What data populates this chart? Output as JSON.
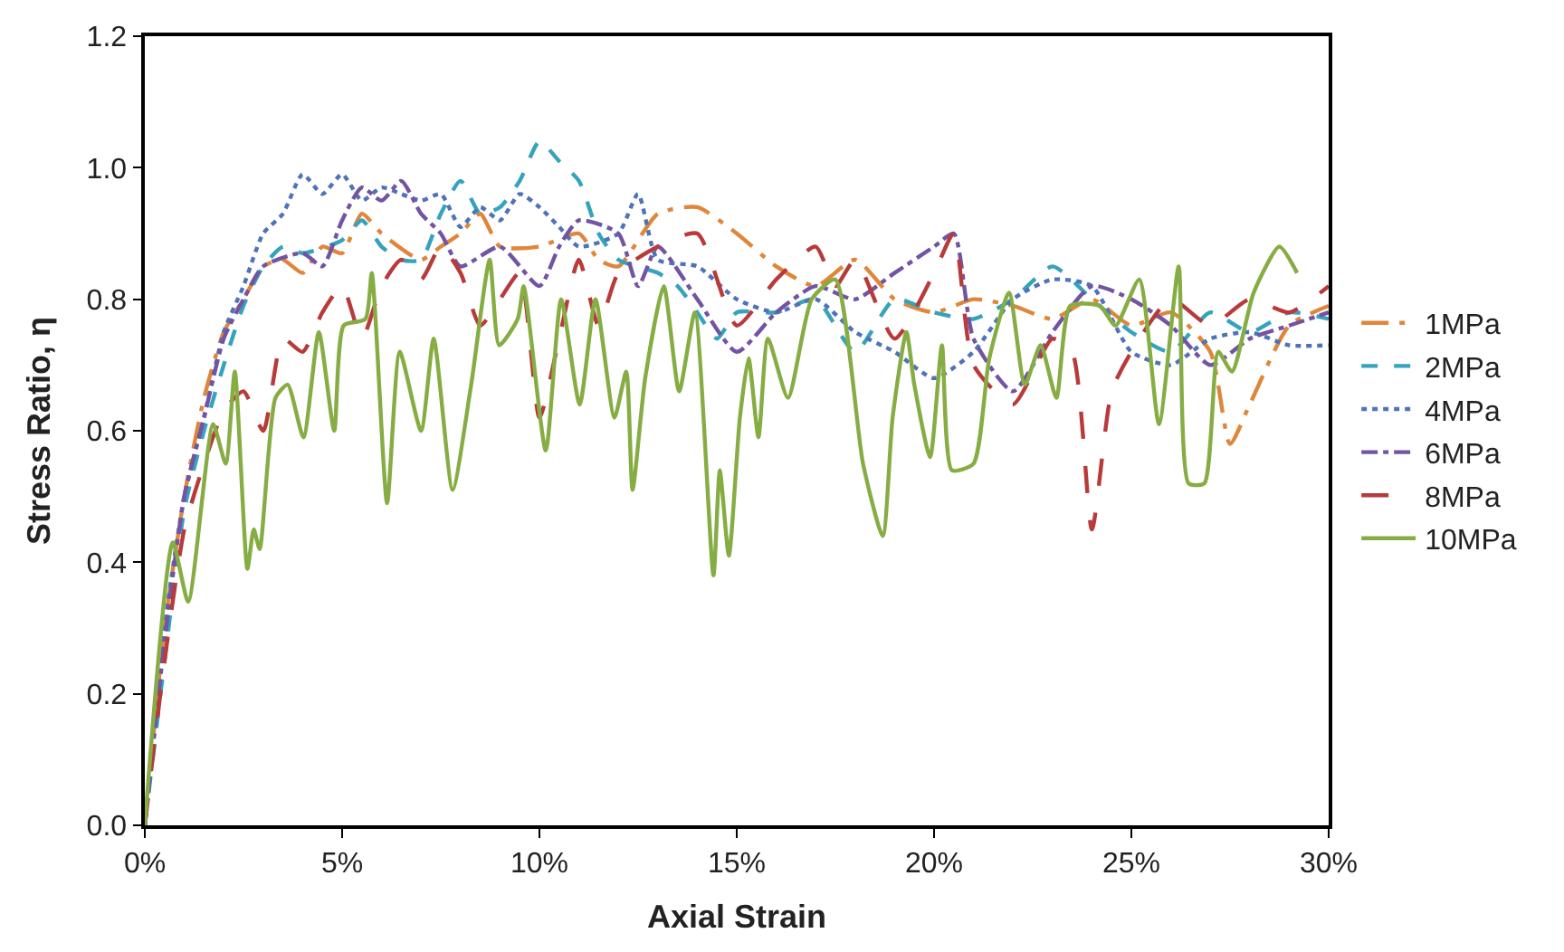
{
  "chart_data": {
    "type": "line",
    "xlabel": "Axial Strain",
    "ylabel": "Stress Ratio, η",
    "xlim": [
      0,
      30
    ],
    "xticks": [
      {
        "value": 0,
        "label": "0%"
      },
      {
        "value": 5,
        "label": "5%"
      },
      {
        "value": 10,
        "label": "10%"
      },
      {
        "value": 15,
        "label": "15%"
      },
      {
        "value": 20,
        "label": "20%"
      },
      {
        "value": 25,
        "label": "25%"
      },
      {
        "value": 30,
        "label": "30%"
      }
    ],
    "ylim": [
      0,
      1.2
    ],
    "yticks": [
      {
        "value": 0,
        "label": "0.0"
      },
      {
        "value": 0.2,
        "label": "0.2"
      },
      {
        "value": 0.4,
        "label": "0.4"
      },
      {
        "value": 0.6,
        "label": "0.6"
      },
      {
        "value": 0.8,
        "label": "0.8"
      },
      {
        "value": 1.0,
        "label": "1.0"
      },
      {
        "value": 1.2,
        "label": "1.2"
      }
    ],
    "legend": "right",
    "marker": "none",
    "series": [
      {
        "name": "1MPa",
        "color": "#e0863a",
        "line_style": "longdashdot",
        "x": [
          0,
          0.5,
          1,
          1.5,
          2,
          2.5,
          3,
          3.5,
          4,
          4.5,
          5,
          5.5,
          6,
          7,
          7.5,
          8,
          8.5,
          9,
          10,
          11,
          11.5,
          12,
          13,
          14,
          15,
          16,
          17,
          18,
          19,
          20,
          21,
          22,
          23,
          24,
          25,
          26,
          27,
          27.5,
          28,
          29,
          30
        ],
        "values": [
          0,
          0.3,
          0.5,
          0.65,
          0.75,
          0.8,
          0.85,
          0.86,
          0.84,
          0.88,
          0.87,
          0.93,
          0.9,
          0.86,
          0.88,
          0.9,
          0.93,
          0.88,
          0.88,
          0.9,
          0.86,
          0.85,
          0.93,
          0.94,
          0.9,
          0.85,
          0.82,
          0.86,
          0.8,
          0.78,
          0.8,
          0.79,
          0.77,
          0.8,
          0.76,
          0.78,
          0.72,
          0.58,
          0.64,
          0.76,
          0.79
        ]
      },
      {
        "name": "2MPa",
        "color": "#35a3bd",
        "line_style": "dashed",
        "x": [
          0,
          0.5,
          1,
          1.5,
          2,
          2.5,
          3,
          3.5,
          4,
          5,
          5.5,
          6,
          6.5,
          7,
          7.5,
          8,
          8.5,
          9,
          9.5,
          10,
          10.5,
          11,
          11.5,
          12,
          13,
          13.5,
          14,
          14.5,
          15,
          16,
          17,
          18,
          19,
          20,
          21,
          22,
          23,
          24,
          25,
          26,
          27,
          28,
          29,
          30
        ],
        "values": [
          0,
          0.25,
          0.48,
          0.6,
          0.7,
          0.79,
          0.85,
          0.88,
          0.87,
          0.89,
          0.92,
          0.88,
          0.86,
          0.86,
          0.93,
          0.98,
          0.93,
          0.94,
          0.98,
          1.04,
          1.01,
          0.98,
          0.9,
          0.86,
          0.84,
          0.82,
          0.78,
          0.74,
          0.78,
          0.78,
          0.8,
          0.72,
          0.8,
          0.78,
          0.77,
          0.8,
          0.85,
          0.8,
          0.75,
          0.72,
          0.78,
          0.75,
          0.78,
          0.77
        ]
      },
      {
        "name": "4MPa",
        "color": "#4f73b8",
        "line_style": "dotted",
        "x": [
          0,
          0.5,
          1,
          1.5,
          2,
          2.5,
          3,
          3.5,
          4,
          4.5,
          5,
          5.5,
          6,
          6.5,
          7,
          7.5,
          8,
          8.5,
          9,
          9.5,
          10,
          10.5,
          11,
          12,
          12.5,
          13,
          14,
          15,
          16,
          17,
          18,
          19,
          20,
          21,
          22,
          23,
          24,
          25,
          26,
          27,
          28,
          29,
          30
        ],
        "values": [
          0,
          0.3,
          0.5,
          0.62,
          0.75,
          0.82,
          0.9,
          0.93,
          0.99,
          0.96,
          0.99,
          0.95,
          0.97,
          0.96,
          0.95,
          0.96,
          0.91,
          0.94,
          0.92,
          0.96,
          0.94,
          0.91,
          0.88,
          0.9,
          0.96,
          0.86,
          0.85,
          0.8,
          0.78,
          0.8,
          0.75,
          0.72,
          0.68,
          0.72,
          0.8,
          0.83,
          0.82,
          0.72,
          0.7,
          0.74,
          0.75,
          0.73,
          0.73
        ]
      },
      {
        "name": "6MPa",
        "color": "#7254a2",
        "line_style": "dashdot",
        "x": [
          0,
          0.5,
          1,
          1.5,
          2,
          2.5,
          3,
          4,
          4.5,
          5,
          5.5,
          6,
          6.5,
          7,
          7.5,
          8,
          9,
          10,
          10.5,
          11,
          12,
          12.5,
          13,
          14,
          15,
          16,
          17,
          18,
          19,
          20,
          20.5,
          21,
          22,
          23,
          24,
          25,
          26,
          27,
          28,
          29,
          30
        ],
        "values": [
          0,
          0.28,
          0.5,
          0.62,
          0.74,
          0.8,
          0.85,
          0.87,
          0.85,
          0.92,
          0.97,
          0.95,
          0.98,
          0.93,
          0.9,
          0.85,
          0.88,
          0.82,
          0.88,
          0.92,
          0.9,
          0.82,
          0.88,
          0.8,
          0.72,
          0.78,
          0.82,
          0.8,
          0.84,
          0.88,
          0.9,
          0.74,
          0.66,
          0.75,
          0.82,
          0.8,
          0.76,
          0.7,
          0.74,
          0.76,
          0.78
        ]
      },
      {
        "name": "8MPa",
        "color": "#b83a3a",
        "line_style": "longdash",
        "x": [
          0,
          0.5,
          1,
          1.5,
          2,
          2.5,
          3,
          3.5,
          4,
          4.5,
          5,
          5.5,
          6,
          6.5,
          7,
          7.5,
          8,
          8.5,
          9,
          9.5,
          10,
          10.5,
          11,
          11.5,
          12,
          13,
          14,
          15,
          16,
          17,
          17.5,
          18,
          19,
          20,
          20.5,
          21,
          22,
          23,
          23.5,
          24,
          24.5,
          25,
          26,
          27,
          28,
          29,
          30
        ],
        "values": [
          0,
          0.25,
          0.45,
          0.55,
          0.63,
          0.66,
          0.6,
          0.74,
          0.72,
          0.78,
          0.82,
          0.74,
          0.82,
          0.86,
          0.83,
          0.88,
          0.84,
          0.76,
          0.8,
          0.84,
          0.62,
          0.74,
          0.86,
          0.76,
          0.84,
          0.88,
          0.9,
          0.76,
          0.83,
          0.88,
          0.82,
          0.86,
          0.74,
          0.84,
          0.9,
          0.7,
          0.64,
          0.74,
          0.72,
          0.45,
          0.66,
          0.72,
          0.8,
          0.76,
          0.8,
          0.78,
          0.82
        ]
      },
      {
        "name": "10MPa",
        "color": "#86ad44",
        "line_style": "solid",
        "x": [
          0,
          0.71,
          1.1,
          1.73,
          2.05,
          2.28,
          2.6,
          2.76,
          2.91,
          3.31,
          3.62,
          4.02,
          4.41,
          4.8,
          5.04,
          5.59,
          5.75,
          6.14,
          6.46,
          7.0,
          7.32,
          7.8,
          8.27,
          8.74,
          8.98,
          9.45,
          9.6,
          10.16,
          10.55,
          11.02,
          11.42,
          11.9,
          12.2,
          12.36,
          12.68,
          13.15,
          13.54,
          13.94,
          14.41,
          14.57,
          14.8,
          15.08,
          15.3,
          15.55,
          15.79,
          16.3,
          16.9,
          17.5,
          18.2,
          18.7,
          18.95,
          19.3,
          19.5,
          19.9,
          20.2,
          20.45,
          21.0,
          21.4,
          21.9,
          22.3,
          22.7,
          23.1,
          23.45,
          24.2,
          24.6,
          25.2,
          25.7,
          26.2,
          26.45,
          26.85,
          27.2,
          27.55,
          28.1,
          28.75,
          29.2
        ],
        "values": [
          0,
          0.43,
          0.34,
          0.61,
          0.55,
          0.69,
          0.39,
          0.45,
          0.42,
          0.65,
          0.67,
          0.59,
          0.75,
          0.6,
          0.76,
          0.77,
          0.84,
          0.49,
          0.72,
          0.6,
          0.74,
          0.51,
          0.67,
          0.86,
          0.73,
          0.77,
          0.82,
          0.57,
          0.8,
          0.64,
          0.8,
          0.62,
          0.69,
          0.51,
          0.68,
          0.82,
          0.66,
          0.78,
          0.38,
          0.54,
          0.41,
          0.62,
          0.71,
          0.59,
          0.74,
          0.65,
          0.8,
          0.83,
          0.55,
          0.44,
          0.62,
          0.75,
          0.67,
          0.56,
          0.73,
          0.54,
          0.55,
          0.71,
          0.81,
          0.67,
          0.73,
          0.65,
          0.79,
          0.79,
          0.76,
          0.83,
          0.61,
          0.85,
          0.52,
          0.52,
          0.72,
          0.69,
          0.81,
          0.88,
          0.84
        ]
      }
    ]
  }
}
